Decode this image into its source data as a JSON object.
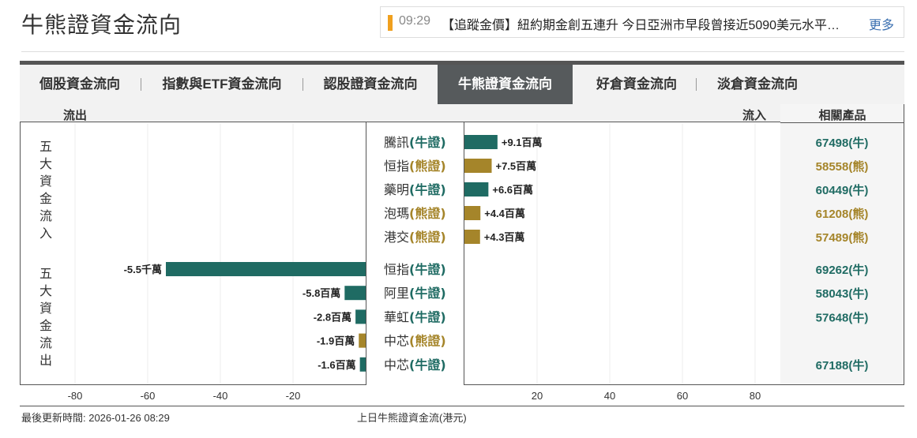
{
  "page_title": "牛熊證資金流向",
  "news": {
    "time": "09:29",
    "text": "【追蹤金價】紐約期金創五連升 今日亞洲市早段曾接近5090美元水平…",
    "more_label": "更多"
  },
  "tabs": [
    {
      "label": "個股資金流向",
      "active": false
    },
    {
      "label": "指數與ETF資金流向",
      "active": false
    },
    {
      "label": "認股證資金流向",
      "active": false
    },
    {
      "label": "牛熊證資金流向",
      "active": true
    },
    {
      "label": "好倉資金流向",
      "active": false
    },
    {
      "label": "淡倉資金流向",
      "active": false
    }
  ],
  "headers": {
    "outflow": "流出",
    "inflow": "流入",
    "product": "相關產品"
  },
  "side_labels": {
    "inflow": "五大資金流入",
    "outflow": "五大資金流出"
  },
  "colors": {
    "bull": "#1f6b63",
    "bear": "#a5852a"
  },
  "chart_data": {
    "type": "bar",
    "orientation": "horizontal",
    "xlabel": "上日牛熊證資金流(港元)",
    "xticks": [
      -80,
      -60,
      -40,
      -20,
      20,
      40,
      60,
      80
    ],
    "xlim": [
      -100,
      100
    ],
    "grid": true,
    "rows": [
      {
        "group": "inflow",
        "stock": "騰訊",
        "kind": "(牛證)",
        "type": "bull",
        "value": 9.1,
        "value_label": "+9.1百萬",
        "product": "67498(牛)"
      },
      {
        "group": "inflow",
        "stock": "恒指",
        "kind": "(熊證)",
        "type": "bear",
        "value": 7.5,
        "value_label": "+7.5百萬",
        "product": "58558(熊)"
      },
      {
        "group": "inflow",
        "stock": "藥明",
        "kind": "(牛證)",
        "type": "bull",
        "value": 6.6,
        "value_label": "+6.6百萬",
        "product": "60449(牛)"
      },
      {
        "group": "inflow",
        "stock": "泡瑪",
        "kind": "(熊證)",
        "type": "bear",
        "value": 4.4,
        "value_label": "+4.4百萬",
        "product": "61208(熊)"
      },
      {
        "group": "inflow",
        "stock": "港交",
        "kind": "(熊證)",
        "type": "bear",
        "value": 4.3,
        "value_label": "+4.3百萬",
        "product": "57489(熊)"
      },
      {
        "group": "outflow",
        "stock": "恒指",
        "kind": "(牛證)",
        "type": "bull",
        "value": -55,
        "value_label": "-5.5千萬",
        "product": "69262(牛)"
      },
      {
        "group": "outflow",
        "stock": "阿里",
        "kind": "(牛證)",
        "type": "bull",
        "value": -5.8,
        "value_label": "-5.8百萬",
        "product": "58043(牛)"
      },
      {
        "group": "outflow",
        "stock": "華虹",
        "kind": "(牛證)",
        "type": "bull",
        "value": -2.8,
        "value_label": "-2.8百萬",
        "product": "57648(牛)"
      },
      {
        "group": "outflow",
        "stock": "中芯",
        "kind": "(熊證)",
        "type": "bear",
        "value": -1.9,
        "value_label": "-1.9百萬",
        "product": ""
      },
      {
        "group": "outflow",
        "stock": "中芯",
        "kind": "(牛證)",
        "type": "bull",
        "value": -1.6,
        "value_label": "-1.6百萬",
        "product": "67188(牛)"
      }
    ]
  },
  "footer": {
    "updated": "最後更新時間: 2026-01-26 08:29"
  }
}
